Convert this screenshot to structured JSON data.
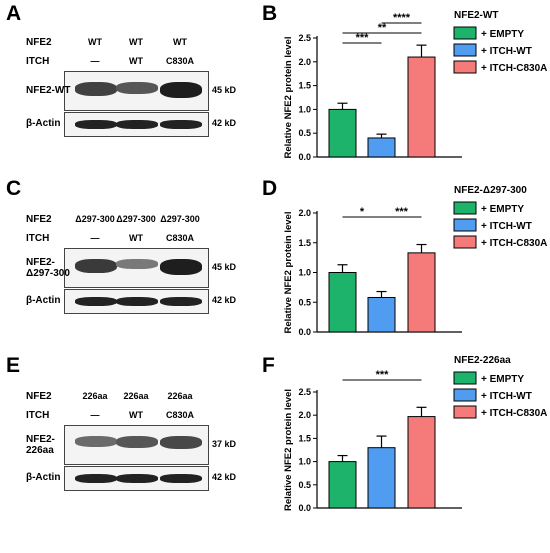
{
  "colors": {
    "empty": "#1db36b",
    "itch_wt": "#4f9cf0",
    "itch_c830a": "#f57b7b"
  },
  "panels": {
    "a": {
      "letter": "A"
    },
    "b": {
      "letter": "B"
    },
    "c": {
      "letter": "C"
    },
    "d": {
      "letter": "D"
    },
    "e": {
      "letter": "E"
    },
    "f": {
      "letter": "F"
    }
  },
  "blots": [
    {
      "row1_label": "NFE2",
      "row2_label": "ITCH",
      "nfe2_vals": [
        "WT",
        "WT",
        "WT"
      ],
      "itch_vals": [
        "—",
        "WT",
        "C830A"
      ],
      "band_label": "NFE2-WT",
      "band_kd": "45 kD",
      "actin_label": "β-Actin",
      "actin_kd": "42 kD",
      "intensity": [
        0.75,
        0.6,
        1.0
      ]
    },
    {
      "row1_label": "NFE2",
      "row2_label": "ITCH",
      "nfe2_vals": [
        "Δ297-300",
        "Δ297-300",
        "Δ297-300"
      ],
      "itch_vals": [
        "—",
        "WT",
        "C830A"
      ],
      "band_label": "NFE2-\nΔ297-300",
      "band_kd": "45 kD",
      "actin_label": "β-Actin",
      "actin_kd": "42 kD",
      "intensity": [
        0.8,
        0.35,
        1.0
      ]
    },
    {
      "row1_label": "NFE2",
      "row2_label": "ITCH",
      "nfe2_vals": [
        "226aa",
        "226aa",
        "226aa"
      ],
      "itch_vals": [
        "—",
        "WT",
        "C830A"
      ],
      "band_label": "NFE2-\n226aa",
      "band_kd": "37 kD",
      "actin_label": "β-Actin",
      "actin_kd": "42 kD",
      "intensity": [
        0.45,
        0.6,
        0.7
      ]
    }
  ],
  "chart_data": [
    {
      "type": "bar",
      "title": "NFE2-WT",
      "ylabel": "Relative NFE2 protein level",
      "ylim": [
        0,
        2.5
      ],
      "yticks": [
        "0.0",
        "0.5",
        "1.0",
        "1.5",
        "2.0",
        "2.5"
      ],
      "categories": [
        "+ EMPTY",
        "+ ITCH-WT",
        "+ ITCH-C830A"
      ],
      "values": [
        1.0,
        0.4,
        2.1
      ],
      "errors": [
        0.13,
        0.08,
        0.25
      ],
      "significance": [
        {
          "from": 0,
          "to": 1,
          "label": "***"
        },
        {
          "from": 1,
          "to": 2,
          "label": "****"
        },
        {
          "from": 0,
          "to": 2,
          "label": "**"
        }
      ],
      "legend_position": "right"
    },
    {
      "type": "bar",
      "title": "NFE2-Δ297-300",
      "ylabel": "Relative NFE2 protein level",
      "ylim": [
        0,
        2.0
      ],
      "yticks": [
        "0.0",
        "0.5",
        "1.0",
        "1.5",
        "2.0"
      ],
      "categories": [
        "+ EMPTY",
        "+ ITCH-WT",
        "+ ITCH-C830A"
      ],
      "values": [
        1.0,
        0.58,
        1.33
      ],
      "errors": [
        0.13,
        0.1,
        0.14
      ],
      "significance": [
        {
          "from": 0,
          "to": 1,
          "label": "*"
        },
        {
          "from": 1,
          "to": 2,
          "label": "***"
        }
      ],
      "legend_position": "right"
    },
    {
      "type": "bar",
      "title": "NFE2-226aa",
      "ylabel": "Relative NFE2 protein level",
      "ylim": [
        0,
        2.5
      ],
      "yticks": [
        "0.0",
        "0.5",
        "1.0",
        "1.5",
        "2.0",
        "2.5"
      ],
      "categories": [
        "+ EMPTY",
        "+ ITCH-WT",
        "+ ITCH-C830A"
      ],
      "values": [
        1.0,
        1.3,
        1.97
      ],
      "errors": [
        0.13,
        0.25,
        0.2
      ],
      "significance": [
        {
          "from": 0,
          "to": 2,
          "label": "***"
        }
      ],
      "legend_position": "right"
    }
  ]
}
